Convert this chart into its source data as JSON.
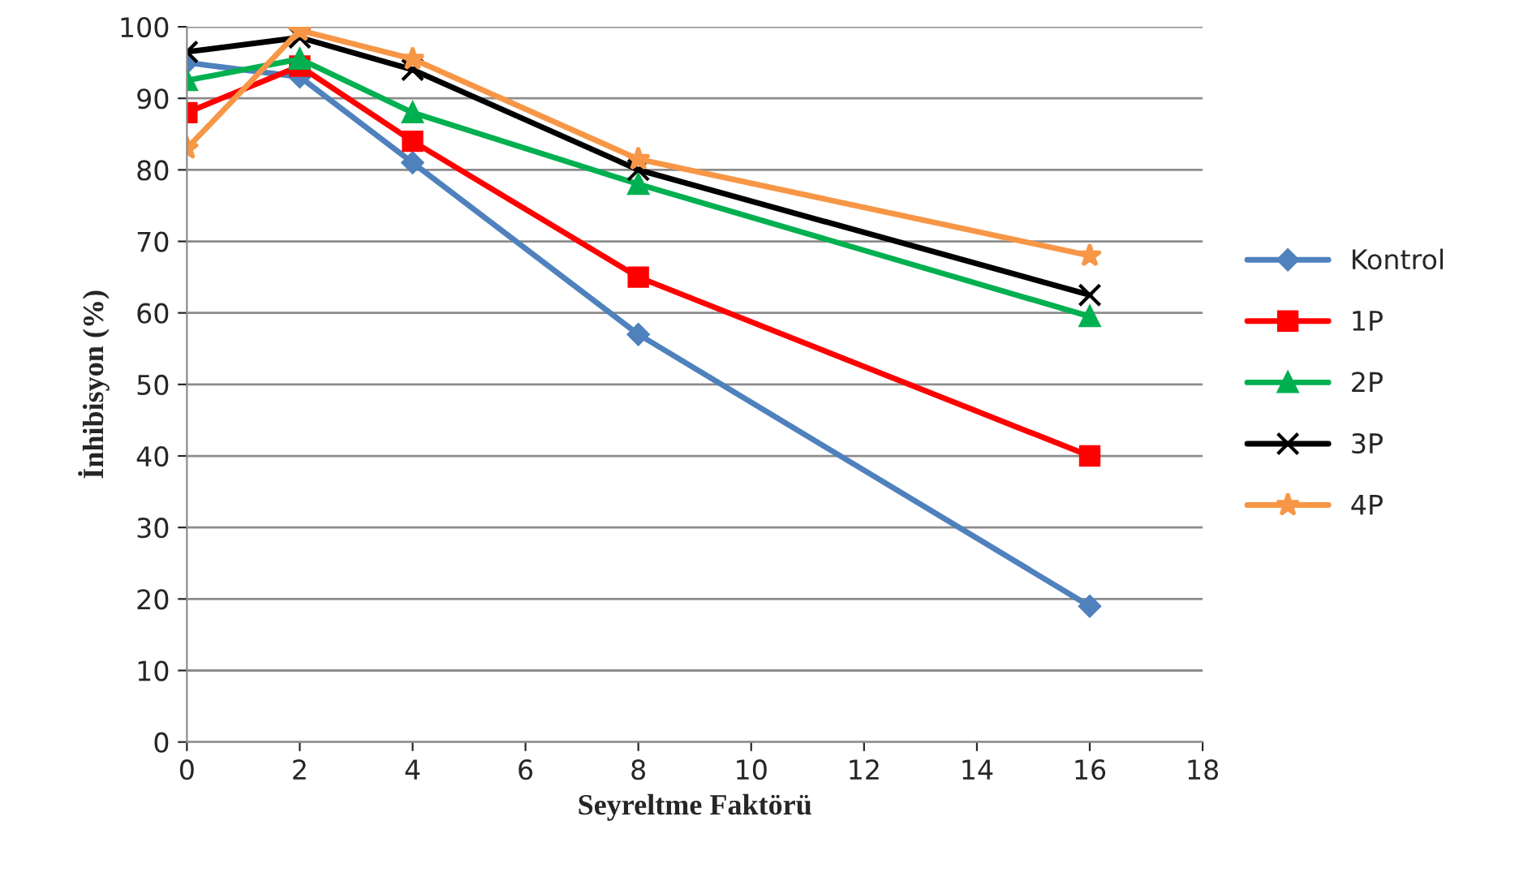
{
  "chart_data": {
    "type": "line",
    "xlabel": "Seyreltme Faktörü",
    "ylabel": "İnhibisyon (%)",
    "x": [
      0,
      2,
      4,
      8,
      16
    ],
    "series": [
      {
        "name": "Kontrol",
        "color": "#4f81bd",
        "marker": "diamond",
        "values": [
          95,
          93,
          81,
          57,
          19
        ]
      },
      {
        "name": "1P",
        "color": "#ff0000",
        "marker": "square",
        "values": [
          88,
          94.5,
          84,
          65,
          40
        ]
      },
      {
        "name": "2P",
        "color": "#00b050",
        "marker": "triangle",
        "values": [
          92.5,
          95.5,
          88,
          78,
          59.5
        ]
      },
      {
        "name": "3P",
        "color": "#000000",
        "marker": "cross",
        "values": [
          96.5,
          98.5,
          94,
          80,
          62.5
        ]
      },
      {
        "name": "4P",
        "color": "#f79646",
        "marker": "star",
        "values": [
          83,
          99.5,
          95.5,
          81.5,
          68
        ]
      }
    ],
    "xlim": [
      0,
      18
    ],
    "xticks": [
      0,
      2,
      4,
      6,
      8,
      10,
      12,
      14,
      16,
      18
    ],
    "ylim": [
      0,
      100
    ],
    "yticks": [
      0,
      10,
      20,
      30,
      40,
      50,
      60,
      70,
      80,
      90,
      100
    ],
    "grid": "y",
    "legend": "right",
    "line_style": "solid"
  }
}
